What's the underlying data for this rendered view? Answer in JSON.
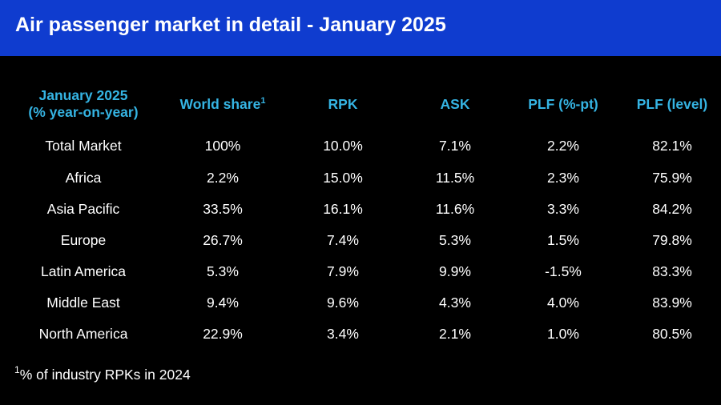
{
  "title": "Air passenger market in detail - January 2025",
  "chart_data": {
    "type": "table",
    "columns": [
      {
        "label": "January 2025\n(% year-on-year)",
        "sup": ""
      },
      {
        "label": "World share",
        "sup": "1"
      },
      {
        "label": "RPK",
        "sup": ""
      },
      {
        "label": "ASK",
        "sup": ""
      },
      {
        "label": "PLF (%-pt)",
        "sup": ""
      },
      {
        "label": "PLF (level)",
        "sup": ""
      }
    ],
    "rows": [
      [
        "Total Market",
        "100%",
        "10.0%",
        "7.1%",
        "2.2%",
        "82.1%"
      ],
      [
        "Africa",
        "2.2%",
        "15.0%",
        "11.5%",
        "2.3%",
        "75.9%"
      ],
      [
        "Asia Pacific",
        "33.5%",
        "16.1%",
        "11.6%",
        "3.3%",
        "84.2%"
      ],
      [
        "Europe",
        "26.7%",
        "7.4%",
        "5.3%",
        "1.5%",
        "79.8%"
      ],
      [
        "Latin America",
        "5.3%",
        "7.9%",
        "9.9%",
        "-1.5%",
        "83.3%"
      ],
      [
        "Middle East",
        "9.4%",
        "9.6%",
        "4.3%",
        "4.0%",
        "83.9%"
      ],
      [
        "North America",
        "22.9%",
        "3.4%",
        "2.1%",
        "1.0%",
        "80.5%"
      ]
    ]
  },
  "footnote": {
    "sup": "1",
    "text": "% of industry RPKs in 2024"
  },
  "colors": {
    "title_bar": "#0f3ccf",
    "header_text": "#35b4e3",
    "background": "#000000",
    "body_text": "#ffffff"
  }
}
